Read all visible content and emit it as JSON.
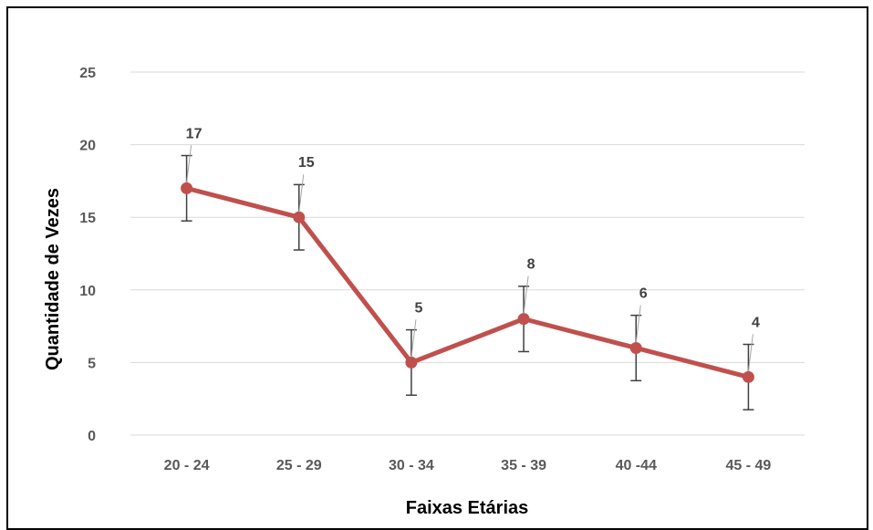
{
  "chart_data": {
    "type": "line",
    "title": "",
    "xlabel": "Faixas Etárias",
    "ylabel": "Quantidade de Vezes",
    "categories": [
      "20 - 24",
      "25 - 29",
      "30 - 34",
      "35 - 39",
      "40 -44",
      "45 - 49"
    ],
    "series": [
      {
        "values": [
          17,
          15,
          5,
          8,
          6,
          4
        ],
        "error": [
          2.25,
          2.25,
          2.25,
          2.25,
          2.25,
          2.25
        ]
      }
    ],
    "ylim": [
      0,
      25
    ],
    "yticks": [
      0,
      5,
      10,
      15,
      20,
      25
    ],
    "grid": true,
    "legend": "none",
    "colors": {
      "line": "#c0504d",
      "grid": "#d9d9d9",
      "errorbar": "#404040"
    }
  }
}
